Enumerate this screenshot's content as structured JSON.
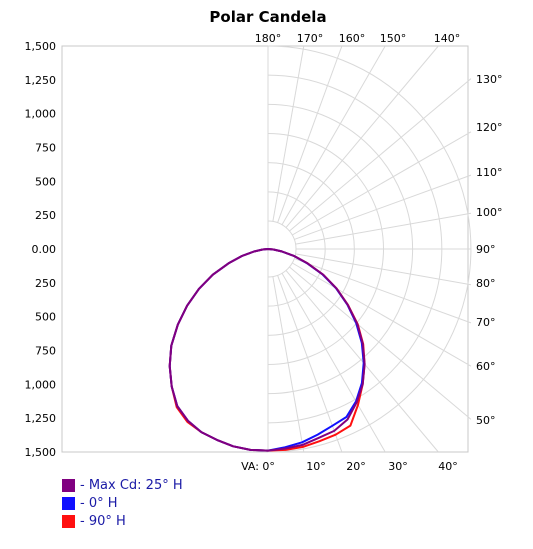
{
  "chart_data": {
    "type": "polar-line",
    "title": "Polar Candela",
    "y_ticks": [
      "1,500",
      "1,250",
      "1,000",
      "750",
      "500",
      "250",
      "0.00",
      "250",
      "500",
      "750",
      "1,000",
      "1,250",
      "1,500"
    ],
    "radial_max": 1500,
    "top_angle_labels": [
      "180°",
      "170°",
      "160°",
      "150°",
      "140°"
    ],
    "right_angle_labels": [
      "130°",
      "120°",
      "110°",
      "100°",
      "90°",
      "80°",
      "70°",
      "60°",
      "50°"
    ],
    "bottom_angle_labels": [
      "VA: 0°",
      "10°",
      "20°",
      "30°",
      "40°"
    ],
    "legend": [
      {
        "label": "- Max Cd: 25° H",
        "color": "#800080"
      },
      {
        "label": "- 0° H",
        "color": "#1010ff"
      },
      {
        "label": "- 90° H",
        "color": "#ff1010"
      }
    ],
    "series": [
      {
        "name": "- Max Cd: 25° H",
        "color": "#800080",
        "angles": [
          0,
          5,
          10,
          15,
          20,
          25,
          30,
          35,
          40,
          45,
          50,
          55,
          60,
          65,
          70,
          75,
          80,
          85,
          90
        ],
        "right": [
          1490,
          1480,
          1470,
          1445,
          1430,
          1390,
          1310,
          1220,
          1110,
          990,
          860,
          720,
          585,
          450,
          310,
          200,
          105,
          40,
          0
        ],
        "left": [
          1490,
          1490,
          1480,
          1460,
          1440,
          1400,
          1340,
          1240,
          1130,
          1010,
          870,
          730,
          590,
          450,
          310,
          200,
          105,
          40,
          0
        ]
      },
      {
        "name": "- 0° H",
        "color": "#1010ff",
        "angles": [
          0,
          5,
          10,
          15,
          20,
          25,
          30,
          35,
          40,
          45,
          50,
          55,
          60,
          65,
          70,
          75,
          80,
          85,
          90
        ],
        "right": [
          1490,
          1470,
          1450,
          1420,
          1390,
          1370,
          1300,
          1210,
          1100,
          980,
          850,
          715,
          580,
          445,
          305,
          198,
          103,
          40,
          0
        ],
        "left": [
          1490,
          1490,
          1480,
          1460,
          1440,
          1400,
          1340,
          1240,
          1130,
          1010,
          870,
          730,
          590,
          450,
          310,
          200,
          105,
          40,
          0
        ]
      },
      {
        "name": "- 90° H",
        "color": "#ff1010",
        "angles": [
          0,
          5,
          10,
          15,
          20,
          25,
          30,
          35,
          40,
          45,
          50,
          55,
          60,
          65,
          70,
          75,
          80,
          85,
          90
        ],
        "right": [
          1490,
          1490,
          1485,
          1470,
          1460,
          1440,
          1330,
          1220,
          1110,
          995,
          865,
          722,
          586,
          452,
          312,
          202,
          106,
          41,
          0
        ],
        "left": [
          1490,
          1490,
          1480,
          1460,
          1440,
          1410,
          1350,
          1240,
          1130,
          1010,
          870,
          730,
          590,
          450,
          310,
          200,
          105,
          40,
          0
        ]
      }
    ],
    "grid": true
  }
}
